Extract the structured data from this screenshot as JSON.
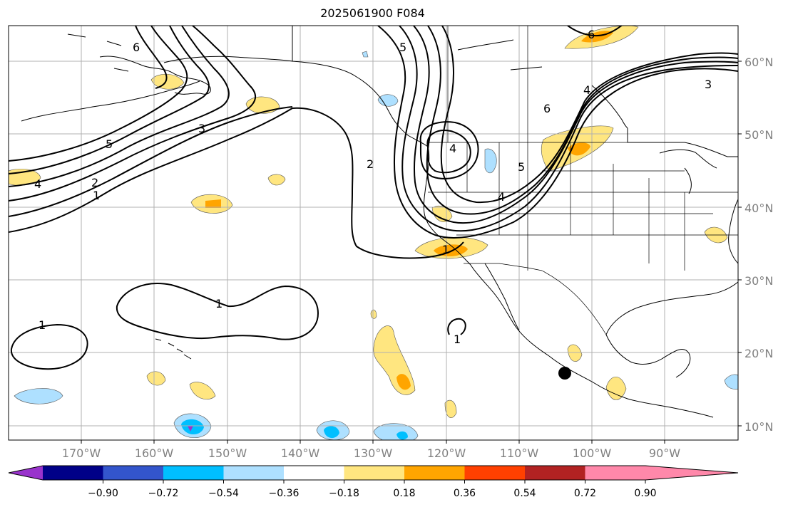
{
  "title": "2025061900 F084",
  "map": {
    "lat_labels": [
      "60°N",
      "50°N",
      "40°N",
      "30°N",
      "20°N",
      "10°N"
    ],
    "lon_labels": [
      "170°W",
      "160°W",
      "150°W",
      "140°W",
      "130°W",
      "120°W",
      "110°W",
      "100°W",
      "90°W"
    ],
    "contour_labels": [
      "6",
      "5",
      "4",
      "3",
      "2",
      "1",
      "1",
      "1",
      "2",
      "4",
      "6",
      "5",
      "4",
      "3",
      "1",
      "6",
      "4",
      "5",
      "1"
    ]
  },
  "colorbar": {
    "ticks": [
      "−0.90",
      "−0.72",
      "−0.54",
      "−0.36",
      "−0.18",
      "0.18",
      "0.36",
      "0.54",
      "0.72",
      "0.90"
    ],
    "colors": [
      "#9933cc",
      "#000088",
      "#3355cc",
      "#00bfff",
      "#aee0ff",
      "#ffffff",
      "#ffe680",
      "#ffa500",
      "#ff4000",
      "#b22222",
      "#ff88aa"
    ]
  }
}
